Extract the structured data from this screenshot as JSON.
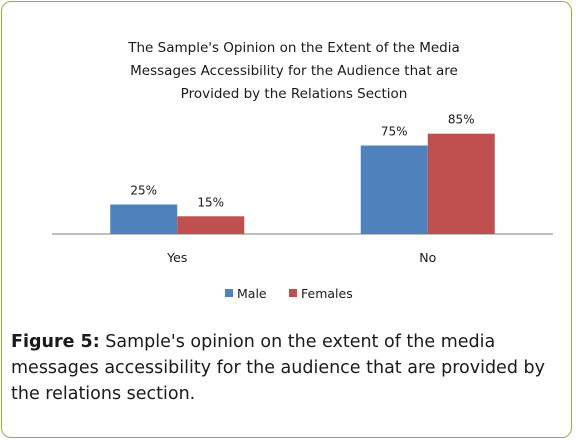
{
  "colors": {
    "male": "#4f81bd",
    "females": "#c0504d",
    "axis": "#7f7f7f",
    "frame": "#8fb340"
  },
  "chart_data": {
    "type": "bar",
    "title_lines": [
      "The Sample's Opinion on the Extent of the Media",
      "Messages Accessibility for the Audience that are",
      "Provided by the Relations Section"
    ],
    "categories": [
      "Yes",
      "No"
    ],
    "series": [
      {
        "name": "Male",
        "values": [
          25,
          75
        ],
        "labels": [
          "25%",
          "75%"
        ]
      },
      {
        "name": "Females",
        "values": [
          15,
          85
        ],
        "labels": [
          "15%",
          "85%"
        ]
      }
    ],
    "ylim": [
      0,
      100
    ],
    "unit": "%",
    "grid": false,
    "legend_position": "bottom"
  },
  "caption": {
    "label": "Figure 5:",
    "text": " Sample's opinion on the extent of the media messages accessibility for the audience that are provided by the relations section."
  }
}
